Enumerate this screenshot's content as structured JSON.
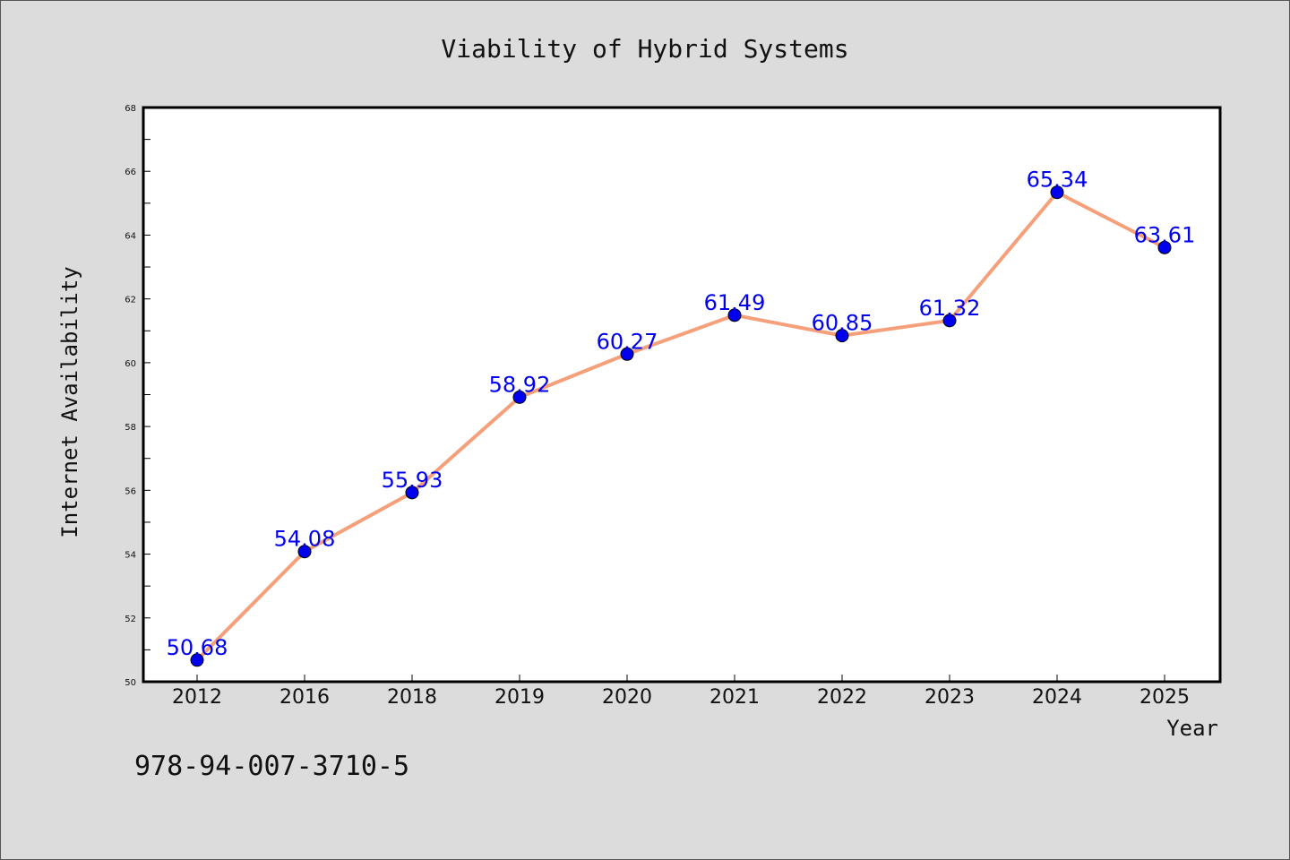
{
  "chart_data": {
    "type": "line",
    "title": "Viability of Hybrid Systems",
    "xlabel": "Year",
    "ylabel": "Internet Availability",
    "categories": [
      "2012",
      "2016",
      "2018",
      "2019",
      "2020",
      "2021",
      "2022",
      "2023",
      "2024",
      "2025"
    ],
    "series": [
      {
        "values": [
          50.68,
          54.08,
          55.93,
          58.92,
          60.27,
          61.49,
          60.85,
          61.32,
          65.34,
          63.61
        ],
        "data_labels": [
          "50.68",
          "54.08",
          "55.93",
          "58.92",
          "60.27",
          "61.49",
          "60.85",
          "61.32",
          "65.34",
          "63.61"
        ],
        "line_color": "#f5a07a",
        "marker_color": "#0000ee"
      }
    ],
    "ylim": [
      50,
      68
    ],
    "yticks": [
      50,
      52,
      54,
      56,
      58,
      60,
      62,
      64,
      66,
      68
    ],
    "grid": false,
    "legend": "none"
  },
  "footer": {
    "isbn": "978-94-007-3710-5"
  }
}
